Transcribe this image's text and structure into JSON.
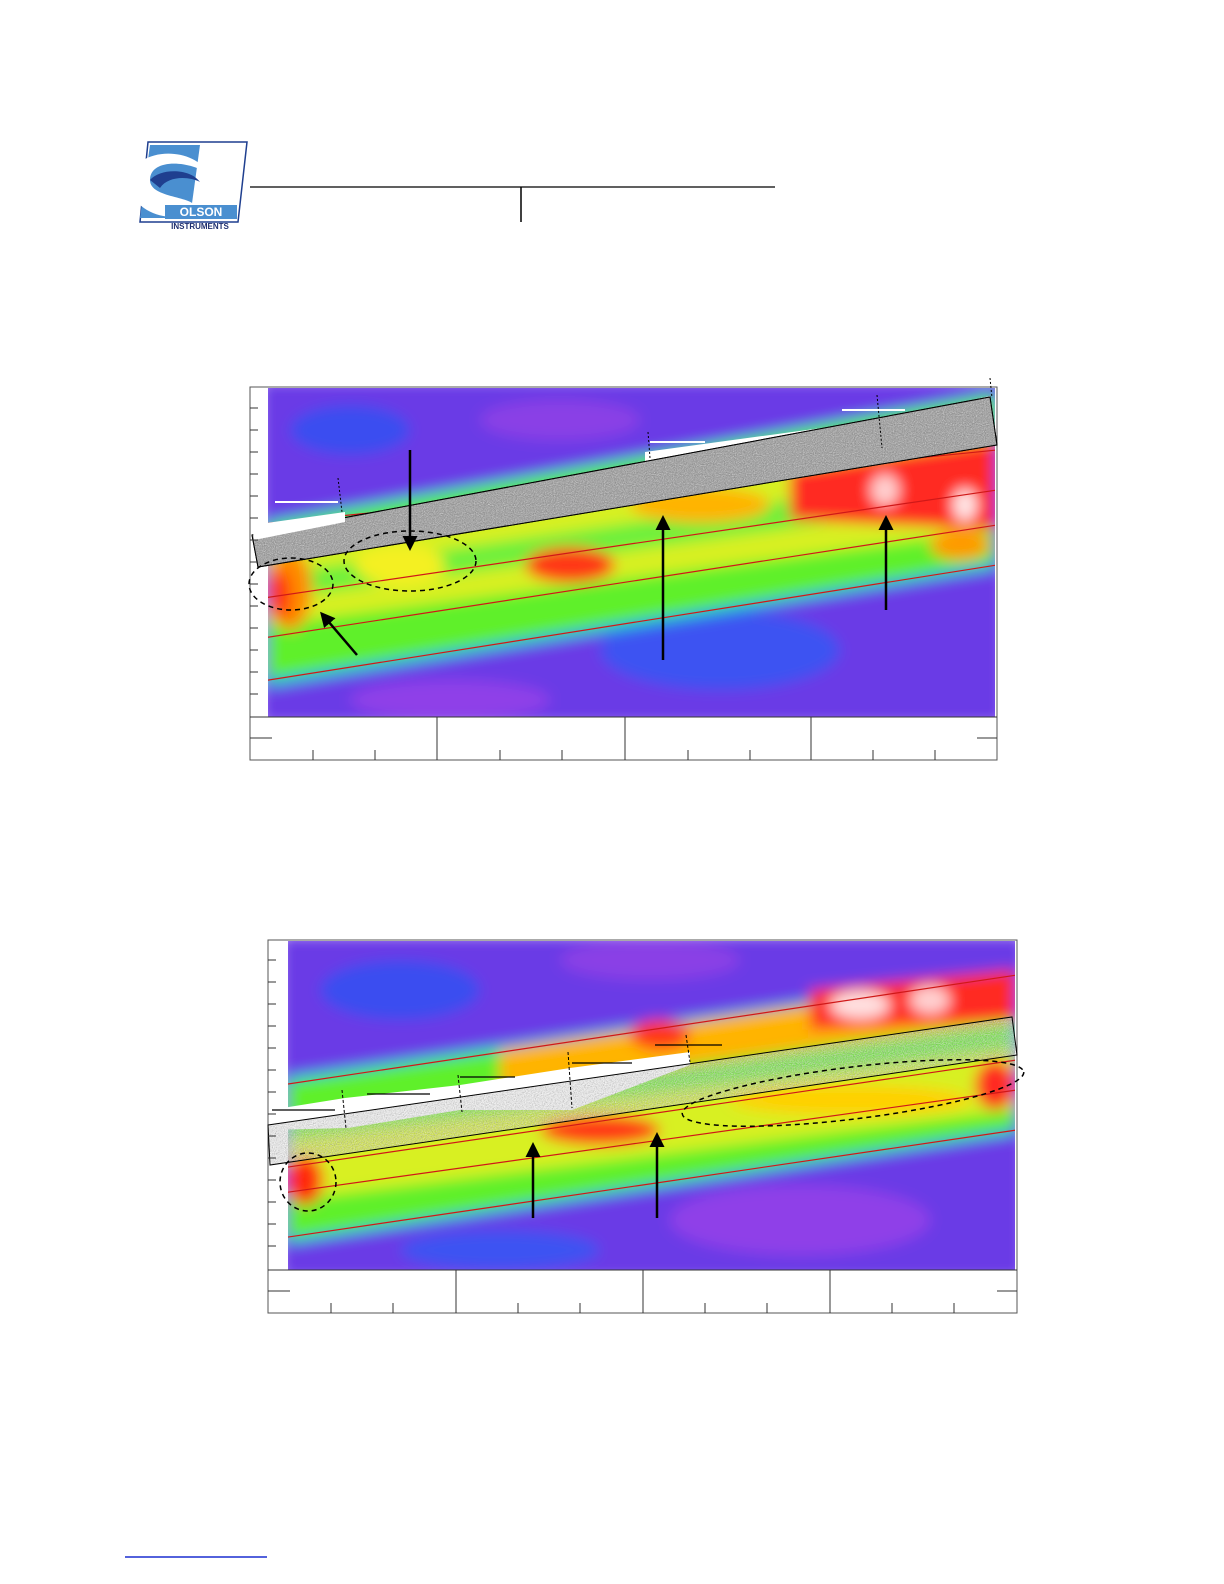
{
  "header": {
    "logo": {
      "name": "OLSON",
      "subtitle": "INSTRUMENTS"
    }
  }
}
